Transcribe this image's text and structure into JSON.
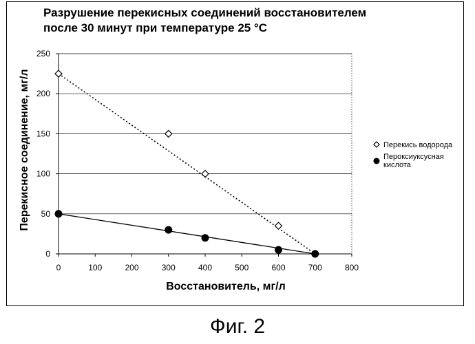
{
  "chart_data": {
    "type": "scatter",
    "title_lines": [
      "Разрушение перекисных соединений восстановителем",
      "после 30 минут при температуре 25 °C"
    ],
    "xlabel": "Восстановитель, мг/л",
    "ylabel": "Перекисное соединение, мг/л",
    "xlim": [
      0,
      800
    ],
    "ylim": [
      0,
      250
    ],
    "xticks": [
      0,
      100,
      200,
      300,
      400,
      500,
      600,
      700,
      800
    ],
    "yticks": [
      0,
      50,
      100,
      150,
      200,
      250
    ],
    "grid": "horizontal",
    "legend_position": "right",
    "series": [
      {
        "name": "Перекись водорода",
        "marker": "diamond-open",
        "line": "dotted",
        "x": [
          0,
          300,
          400,
          600,
          700
        ],
        "y": [
          225,
          150,
          100,
          35,
          0
        ],
        "trend": [
          [
            0,
            225
          ],
          [
            700,
            0
          ]
        ]
      },
      {
        "name": "Пероксиуксусная кислота",
        "legend_lines": [
          "Пероксиуксусная",
          "кислота"
        ],
        "marker": "circle-filled",
        "line": "solid",
        "x": [
          0,
          300,
          400,
          600,
          700
        ],
        "y": [
          50,
          30,
          20,
          5,
          0
        ],
        "trend": [
          [
            0,
            50
          ],
          [
            700,
            0
          ]
        ]
      }
    ]
  },
  "caption": "Фиг. 2"
}
